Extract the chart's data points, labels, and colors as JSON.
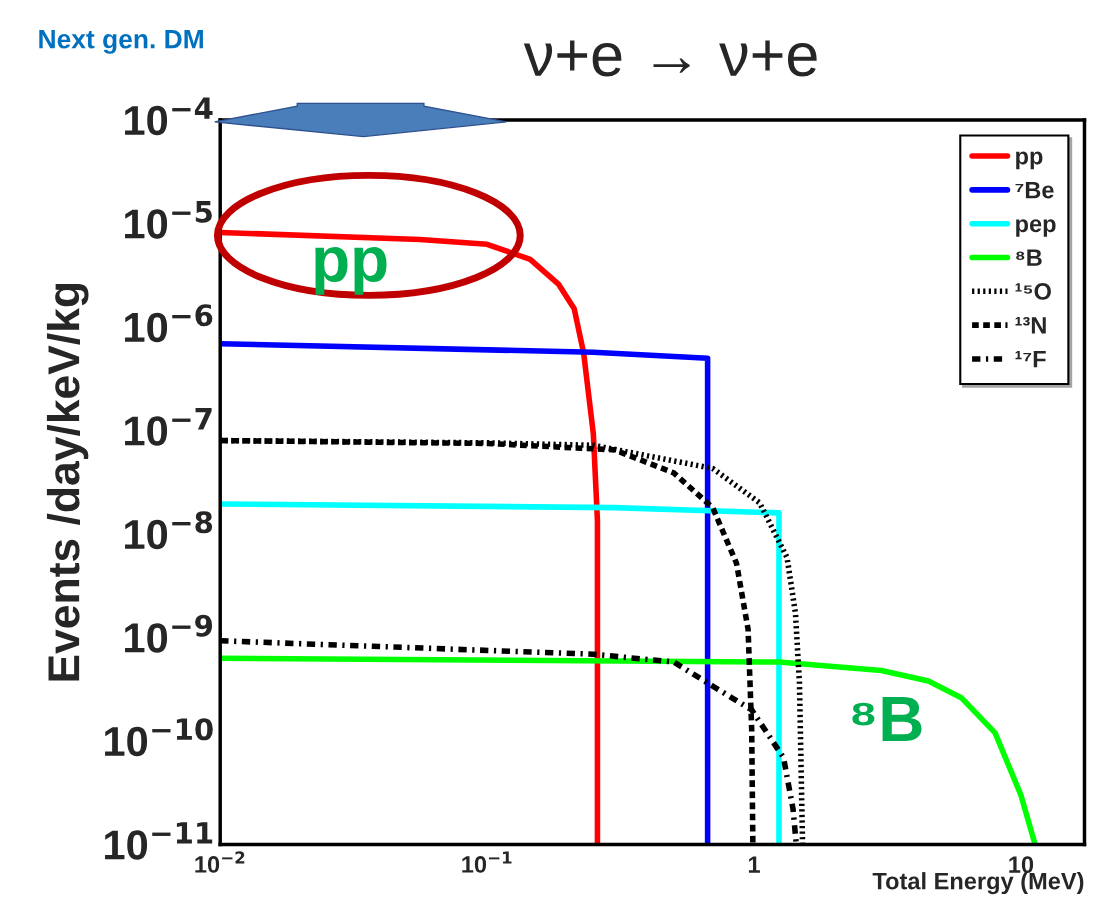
{
  "chart_data": {
    "type": "line",
    "title": "ν+e → ν+e",
    "xlabel": "Total Energy (MeV)",
    "ylabel": "Events /day/keV/kg",
    "log": "xy",
    "xlim": [
      0.01,
      17.3
    ],
    "ylim": [
      1e-11,
      0.0001
    ],
    "xticks": [
      {
        "value": 0.01,
        "label": "10$^{−2}$"
      },
      {
        "value": 0.1,
        "label": "10$^{−1}$"
      },
      1,
      10
    ],
    "yticks": [
      {
        "value": 1e-11,
        "label": "10$^{−11}$"
      },
      {
        "value": 1e-10,
        "label": "10$^{−10}$"
      },
      {
        "value": 1e-09,
        "label": "10$^{−9}$"
      },
      {
        "value": 1e-08,
        "label": "10$^{−8}$"
      },
      {
        "value": 1e-07,
        "label": "10$^{−7}$"
      },
      {
        "value": 1e-06,
        "label": "10$^{−6}$"
      },
      {
        "value": 1e-05,
        "label": "10$^{−5}$"
      },
      {
        "value": 0.0001,
        "label": "10$^{−4}$"
      }
    ],
    "grid": false,
    "legend": "top right",
    "marker": "none",
    "series": [
      {
        "name": "pp",
        "color": "#ff0000",
        "line_style": "solid",
        "x": [
          0.01,
          0.056,
          0.1,
          0.145,
          0.185,
          0.212,
          0.23,
          0.25,
          0.259,
          0.259
        ],
        "values": [
          8.2e-06,
          7e-06,
          6.3e-06,
          4.5e-06,
          2.6e-06,
          1.5e-06,
          5.6e-07,
          9.3e-08,
          1.35e-08,
          1e-11
        ]
      },
      {
        "name": "⁷Be",
        "color": "#0000ff",
        "line_style": "solid",
        "x": [
          0.01,
          0.25,
          0.67,
          0.67
        ],
        "values": [
          6.9e-07,
          5.7e-07,
          5e-07,
          1e-11
        ]
      },
      {
        "name": "pep",
        "color": "#00ffff",
        "line_style": "solid",
        "x": [
          0.01,
          0.3,
          1.24,
          1.24
        ],
        "values": [
          1.95e-08,
          1.8e-08,
          1.6e-08,
          1e-11
        ]
      },
      {
        "name": "⁸B",
        "color": "#00ff00",
        "line_style": "solid",
        "x": [
          0.01,
          1.24,
          3,
          4.5,
          6,
          8,
          10,
          11.3
        ],
        "values": [
          6.3e-10,
          5.8e-10,
          4.8e-10,
          3.8e-10,
          2.6e-10,
          1.2e-10,
          3e-11,
          1e-11
        ]
      },
      {
        "name": "¹⁵O",
        "color": "#000000",
        "line_style": "dotted",
        "x": [
          0.01,
          0.1,
          0.25,
          0.7,
          1.05,
          1.33,
          1.43,
          1.48,
          1.52
        ],
        "values": [
          8e-08,
          7.6e-08,
          7.2e-08,
          4.3e-08,
          2e-08,
          5.9e-09,
          1.7e-09,
          3.6e-10,
          1e-11
        ]
      },
      {
        "name": "¹³N",
        "color": "#000000",
        "line_style": "dashed",
        "x": [
          0.01,
          0.1,
          0.3,
          0.5,
          0.7,
          0.86,
          0.95,
          0.98,
          0.99
        ],
        "values": [
          8e-08,
          7.5e-08,
          6.5e-08,
          3.9e-08,
          1.8e-08,
          5.2e-09,
          1.2e-09,
          1.3e-10,
          1e-11
        ]
      },
      {
        "name": "¹⁷F",
        "color": "#000000",
        "line_style": "dashdot",
        "x": [
          0.01,
          0.25,
          0.5,
          0.7,
          0.98,
          1.29,
          1.4,
          1.44
        ],
        "values": [
          9.3e-10,
          6.9e-10,
          5.8e-10,
          3.4e-10,
          2e-10,
          6.9e-11,
          2.2e-11,
          1e-11
        ]
      }
    ],
    "annotations": [
      "Next gen. DM",
      "pp",
      "⁸B"
    ]
  }
}
